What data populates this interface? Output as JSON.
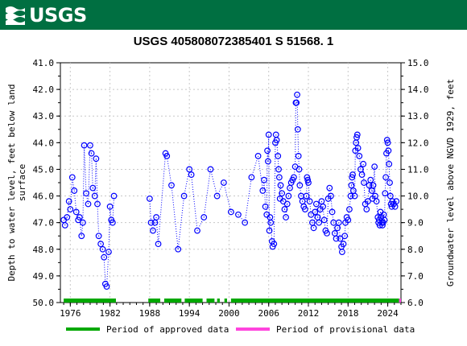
{
  "header": {
    "logo_text": "USGS"
  },
  "chart_data": {
    "type": "scatter",
    "title": "USGS 405808072385401 S 51568. 1",
    "ylabel_left": "Depth to water level, feet below land surface",
    "ylabel_right": "Groundwater level above NGVD 1929, feet",
    "ylim_left": [
      50.0,
      41.0
    ],
    "ylim_right": [
      6.0,
      15.0
    ],
    "xlim": [
      1974.5,
      2026.0
    ],
    "x_ticks": [
      1976,
      1982,
      1988,
      1994,
      2000,
      2006,
      2012,
      2018,
      2024
    ],
    "y_ticks_left": [
      "41.0",
      "42.0",
      "43.0",
      "44.0",
      "45.0",
      "46.0",
      "47.0",
      "48.0",
      "49.0",
      "50.0"
    ],
    "y_ticks_right": [
      "15.0",
      "14.0",
      "13.0",
      "12.0",
      "11.0",
      "10.0",
      "9.0",
      "8.0",
      "7.0",
      "6.0"
    ],
    "series": [
      {
        "marker": "circle-open",
        "color": "#0000ff",
        "line_style": "dotted",
        "points": [
          [
            1975.0,
            46.9
          ],
          [
            1975.2,
            47.1
          ],
          [
            1975.5,
            46.8
          ],
          [
            1975.8,
            46.2
          ],
          [
            1976.0,
            46.5
          ],
          [
            1976.3,
            45.3
          ],
          [
            1976.6,
            45.8
          ],
          [
            1976.9,
            46.6
          ],
          [
            1977.2,
            46.9
          ],
          [
            1977.4,
            46.8
          ],
          [
            1977.7,
            47.5
          ],
          [
            1977.9,
            47.0
          ],
          [
            1978.1,
            44.1
          ],
          [
            1978.4,
            45.9
          ],
          [
            1978.7,
            46.3
          ],
          [
            1979.0,
            44.1
          ],
          [
            1979.2,
            44.4
          ],
          [
            1979.4,
            45.7
          ],
          [
            1979.7,
            46.0
          ],
          [
            1979.9,
            44.6
          ],
          [
            1980.1,
            46.3
          ],
          [
            1980.3,
            47.5
          ],
          [
            1980.6,
            47.8
          ],
          [
            1980.9,
            48.0
          ],
          [
            1981.1,
            48.3
          ],
          [
            1981.3,
            49.3
          ],
          [
            1981.5,
            49.4
          ],
          [
            1981.8,
            48.1
          ],
          [
            1982.0,
            46.4
          ],
          [
            1982.2,
            46.9
          ],
          [
            1982.4,
            47.0
          ],
          [
            1982.6,
            46.0
          ],
          [
            1988.0,
            46.1
          ],
          [
            1988.2,
            47.0
          ],
          [
            1988.5,
            47.3
          ],
          [
            1988.8,
            47.0
          ],
          [
            1989.0,
            46.8
          ],
          [
            1989.3,
            47.8
          ],
          [
            1990.4,
            44.4
          ],
          [
            1990.6,
            44.5
          ],
          [
            1991.3,
            45.6
          ],
          [
            1992.3,
            48.0
          ],
          [
            1993.2,
            46.0
          ],
          [
            1994.0,
            45.0
          ],
          [
            1994.3,
            45.2
          ],
          [
            1995.2,
            47.3
          ],
          [
            1996.2,
            46.8
          ],
          [
            1997.2,
            45.0
          ],
          [
            1998.2,
            46.0
          ],
          [
            1999.2,
            45.5
          ],
          [
            2000.3,
            46.6
          ],
          [
            2001.4,
            46.7
          ],
          [
            2002.4,
            47.0
          ],
          [
            2003.4,
            45.3
          ],
          [
            2004.4,
            44.5
          ],
          [
            2005.1,
            45.8
          ],
          [
            2005.3,
            45.4
          ],
          [
            2005.5,
            46.4
          ],
          [
            2005.7,
            46.7
          ],
          [
            2005.8,
            44.3
          ],
          [
            2005.9,
            44.7
          ],
          [
            2006.0,
            43.7
          ],
          [
            2006.1,
            47.3
          ],
          [
            2006.2,
            46.8
          ],
          [
            2006.3,
            47.0
          ],
          [
            2006.5,
            47.7
          ],
          [
            2006.6,
            47.9
          ],
          [
            2006.8,
            47.8
          ],
          [
            2007.0,
            44.0
          ],
          [
            2007.1,
            43.7
          ],
          [
            2007.2,
            43.9
          ],
          [
            2007.4,
            44.5
          ],
          [
            2007.5,
            45.0
          ],
          [
            2007.6,
            45.3
          ],
          [
            2007.7,
            46.1
          ],
          [
            2007.8,
            45.6
          ],
          [
            2008.0,
            45.9
          ],
          [
            2008.2,
            46.2
          ],
          [
            2008.4,
            46.5
          ],
          [
            2008.6,
            46.8
          ],
          [
            2008.8,
            46.3
          ],
          [
            2009.0,
            46.0
          ],
          [
            2009.2,
            45.7
          ],
          [
            2009.4,
            45.5
          ],
          [
            2009.6,
            45.4
          ],
          [
            2009.8,
            45.3
          ],
          [
            2010.0,
            44.9
          ],
          [
            2010.1,
            42.5
          ],
          [
            2010.2,
            42.5
          ],
          [
            2010.3,
            42.2
          ],
          [
            2010.4,
            43.5
          ],
          [
            2010.5,
            44.5
          ],
          [
            2010.6,
            45.0
          ],
          [
            2010.7,
            45.6
          ],
          [
            2010.9,
            46.0
          ],
          [
            2011.1,
            46.2
          ],
          [
            2011.3,
            46.4
          ],
          [
            2011.5,
            46.5
          ],
          [
            2011.7,
            46.0
          ],
          [
            2011.8,
            45.3
          ],
          [
            2011.9,
            45.4
          ],
          [
            2012.0,
            45.5
          ],
          [
            2012.2,
            46.2
          ],
          [
            2012.4,
            46.7
          ],
          [
            2012.6,
            47.0
          ],
          [
            2012.8,
            47.2
          ],
          [
            2013.0,
            46.6
          ],
          [
            2013.2,
            46.3
          ],
          [
            2013.4,
            46.8
          ],
          [
            2013.6,
            47.0
          ],
          [
            2013.8,
            46.5
          ],
          [
            2014.0,
            46.2
          ],
          [
            2014.2,
            46.4
          ],
          [
            2014.4,
            46.9
          ],
          [
            2014.6,
            47.3
          ],
          [
            2014.8,
            47.4
          ],
          [
            2015.0,
            46.1
          ],
          [
            2015.2,
            45.7
          ],
          [
            2015.4,
            46.0
          ],
          [
            2015.6,
            46.6
          ],
          [
            2015.8,
            47.0
          ],
          [
            2016.0,
            47.4
          ],
          [
            2016.2,
            47.6
          ],
          [
            2016.4,
            47.2
          ],
          [
            2016.6,
            47.0
          ],
          [
            2016.8,
            47.6
          ],
          [
            2017.0,
            47.9
          ],
          [
            2017.1,
            48.1
          ],
          [
            2017.3,
            47.8
          ],
          [
            2017.5,
            47.5
          ],
          [
            2017.6,
            47.0
          ],
          [
            2017.8,
            46.8
          ],
          [
            2018.0,
            46.9
          ],
          [
            2018.2,
            46.5
          ],
          [
            2018.4,
            46.0
          ],
          [
            2018.5,
            45.6
          ],
          [
            2018.6,
            45.3
          ],
          [
            2018.7,
            45.2
          ],
          [
            2018.8,
            45.8
          ],
          [
            2019.0,
            46.0
          ],
          [
            2019.1,
            44.3
          ],
          [
            2019.2,
            44.0
          ],
          [
            2019.3,
            43.8
          ],
          [
            2019.4,
            43.7
          ],
          [
            2019.5,
            44.2
          ],
          [
            2019.7,
            44.5
          ],
          [
            2019.9,
            45.0
          ],
          [
            2020.1,
            45.2
          ],
          [
            2020.3,
            44.8
          ],
          [
            2020.4,
            45.5
          ],
          [
            2020.6,
            46.3
          ],
          [
            2020.8,
            46.5
          ],
          [
            2021.0,
            46.2
          ],
          [
            2021.2,
            45.6
          ],
          [
            2021.4,
            45.4
          ],
          [
            2021.6,
            45.8
          ],
          [
            2021.7,
            46.1
          ],
          [
            2021.8,
            45.6
          ],
          [
            2022.0,
            44.9
          ],
          [
            2022.1,
            46.0
          ],
          [
            2022.3,
            46.2
          ],
          [
            2022.5,
            46.8
          ],
          [
            2022.6,
            47.0
          ],
          [
            2022.7,
            46.9
          ],
          [
            2022.8,
            47.1
          ],
          [
            2022.9,
            46.6
          ],
          [
            2023.0,
            46.8
          ],
          [
            2023.1,
            47.0
          ],
          [
            2023.2,
            47.1
          ],
          [
            2023.3,
            47.0
          ],
          [
            2023.4,
            46.7
          ],
          [
            2023.5,
            46.9
          ],
          [
            2023.6,
            45.9
          ],
          [
            2023.7,
            45.3
          ],
          [
            2023.8,
            44.4
          ],
          [
            2023.9,
            43.9
          ],
          [
            2024.0,
            44.0
          ],
          [
            2024.1,
            44.3
          ],
          [
            2024.2,
            44.8
          ],
          [
            2024.3,
            45.5
          ],
          [
            2024.4,
            46.0
          ],
          [
            2024.5,
            46.3
          ],
          [
            2024.6,
            46.4
          ],
          [
            2024.7,
            46.2
          ],
          [
            2024.9,
            46.3
          ],
          [
            2025.1,
            46.4
          ],
          [
            2025.3,
            46.2
          ]
        ]
      }
    ],
    "period_bars": {
      "approved": {
        "color": "#00a800",
        "segments": [
          [
            1975.0,
            1982.9
          ],
          [
            1987.8,
            1989.6
          ],
          [
            1990.2,
            1992.8
          ],
          [
            1993.3,
            1996.0
          ],
          [
            1996.6,
            1997.8
          ],
          [
            1998.2,
            1998.6
          ],
          [
            1999.3,
            1999.7
          ],
          [
            2000.3,
            2025.7
          ]
        ]
      },
      "provisional": {
        "color": "#ff44dd",
        "segments": [
          [
            2025.7,
            2026.0
          ]
        ]
      }
    },
    "legend": {
      "placement": "bottom",
      "approved_label": "Period of approved data",
      "provisional_label": "Period of provisional data"
    }
  }
}
